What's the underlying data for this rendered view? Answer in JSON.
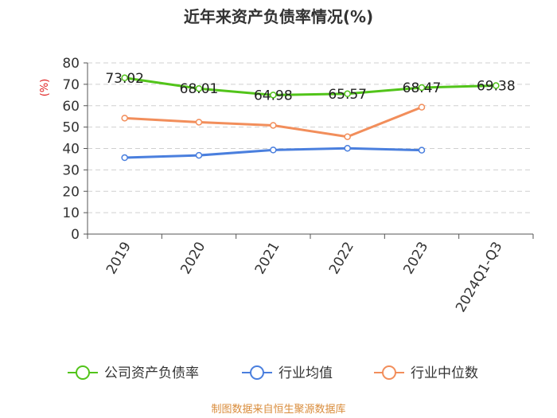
{
  "chart_data": {
    "type": "line",
    "title": "近年来资产负债率情况(%)",
    "y_unit": "(%)",
    "categories": [
      "2019",
      "2020",
      "2021",
      "2022",
      "2023",
      "2024Q1-Q3"
    ],
    "ylim": [
      0,
      80
    ],
    "yticks": [
      "0",
      "10",
      "20",
      "30",
      "40",
      "50",
      "60",
      "70",
      "80"
    ],
    "grid": true,
    "legend_position": "bottom",
    "series": [
      {
        "name": "公司资产负债率",
        "color": "#52c41a",
        "values": [
          73.02,
          68.01,
          64.98,
          65.57,
          68.47,
          69.38
        ],
        "labels": [
          "73.02",
          "68.01",
          "64.98",
          "65.57",
          "68.47",
          "69.38"
        ]
      },
      {
        "name": "行业均值",
        "color": "#4a7fde",
        "values": [
          35.7,
          36.8,
          39.3,
          40.1,
          39.2,
          null
        ]
      },
      {
        "name": "行业中位数",
        "color": "#f28e5b",
        "values": [
          54.2,
          52.3,
          50.8,
          45.5,
          59.3,
          null
        ]
      }
    ],
    "source": "制图数据来自恒生聚源数据库",
    "unit_color": "#e02020",
    "source_color": "#d98c3b"
  }
}
